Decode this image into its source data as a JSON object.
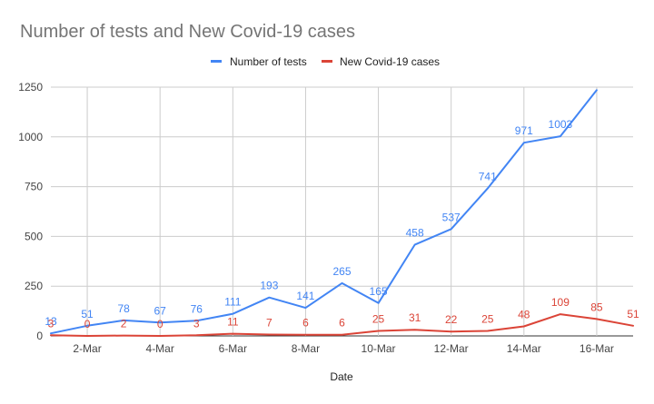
{
  "chart_data": {
    "type": "line",
    "title": "Number of tests and New Covid-19 cases",
    "xlabel": "Date",
    "ylabel": "",
    "ylim": [
      0,
      1250
    ],
    "yticks": [
      "0",
      "250",
      "500",
      "750",
      "1000",
      "1250"
    ],
    "x": [
      "1-Mar",
      "2-Mar",
      "3-Mar",
      "4-Mar",
      "5-Mar",
      "6-Mar",
      "7-Mar",
      "8-Mar",
      "9-Mar",
      "10-Mar",
      "11-Mar",
      "12-Mar",
      "13-Mar",
      "14-Mar",
      "15-Mar",
      "16-Mar",
      "17-Mar"
    ],
    "xtick_labels": [
      "2-Mar",
      "4-Mar",
      "6-Mar",
      "8-Mar",
      "10-Mar",
      "12-Mar",
      "14-Mar",
      "16-Mar"
    ],
    "grid": true,
    "legend_position": "top",
    "series": [
      {
        "name": "Number of tests",
        "color": "#4285f4",
        "values": [
          13,
          51,
          78,
          67,
          76,
          111,
          193,
          141,
          265,
          165,
          458,
          537,
          741,
          971,
          1003,
          1235,
          null
        ]
      },
      {
        "name": "New Covid-19 cases",
        "color": "#db4437",
        "values": [
          3,
          0,
          2,
          0,
          3,
          11,
          7,
          6,
          6,
          25,
          31,
          22,
          25,
          48,
          109,
          85,
          51
        ]
      }
    ],
    "data_labels": {
      "Number of tests": [
        "13",
        "51",
        "78",
        "67",
        "76",
        "111",
        "193",
        "141",
        "265",
        "165",
        "458",
        "537",
        "741",
        "971",
        "1003",
        "",
        ""
      ],
      "New Covid-19 cases": [
        "3",
        "0",
        "2",
        "0",
        "3",
        "11",
        "7",
        "6",
        "6",
        "25",
        "31",
        "22",
        "25",
        "48",
        "109",
        "85",
        "51"
      ]
    }
  }
}
